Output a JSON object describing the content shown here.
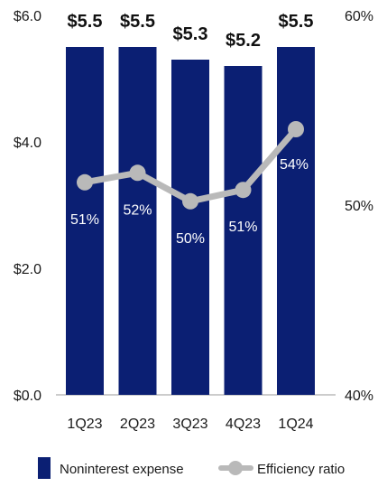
{
  "chart_data": {
    "type": "bar",
    "categories": [
      "1Q23",
      "2Q23",
      "3Q23",
      "4Q23",
      "1Q24"
    ],
    "series": [
      {
        "name": "Noninterest expense",
        "type": "bar",
        "axis": "left",
        "color": "#0b1f73",
        "values": [
          5.5,
          5.5,
          5.3,
          5.2,
          5.5
        ],
        "labels": [
          "$5.5",
          "$5.5",
          "$5.3",
          "$5.2",
          "$5.5"
        ]
      },
      {
        "name": "Efficiency ratio",
        "type": "line",
        "axis": "right",
        "color": "#b9b9b9",
        "values": [
          51.2,
          51.7,
          50.2,
          50.8,
          54.0
        ],
        "labels": [
          "51%",
          "52%",
          "50%",
          "51%",
          "54%"
        ]
      }
    ],
    "y_left": {
      "ticks": [
        "$6.0",
        "$4.0",
        "$2.0",
        "$0.0"
      ],
      "ylim": [
        0,
        6
      ]
    },
    "y_right": {
      "ticks": [
        "60%",
        "50%",
        "40%"
      ],
      "ylim": [
        40,
        60
      ]
    },
    "legend": {
      "placement": "bottom",
      "items": [
        "Noninterest expense",
        "Efficiency ratio"
      ]
    }
  }
}
